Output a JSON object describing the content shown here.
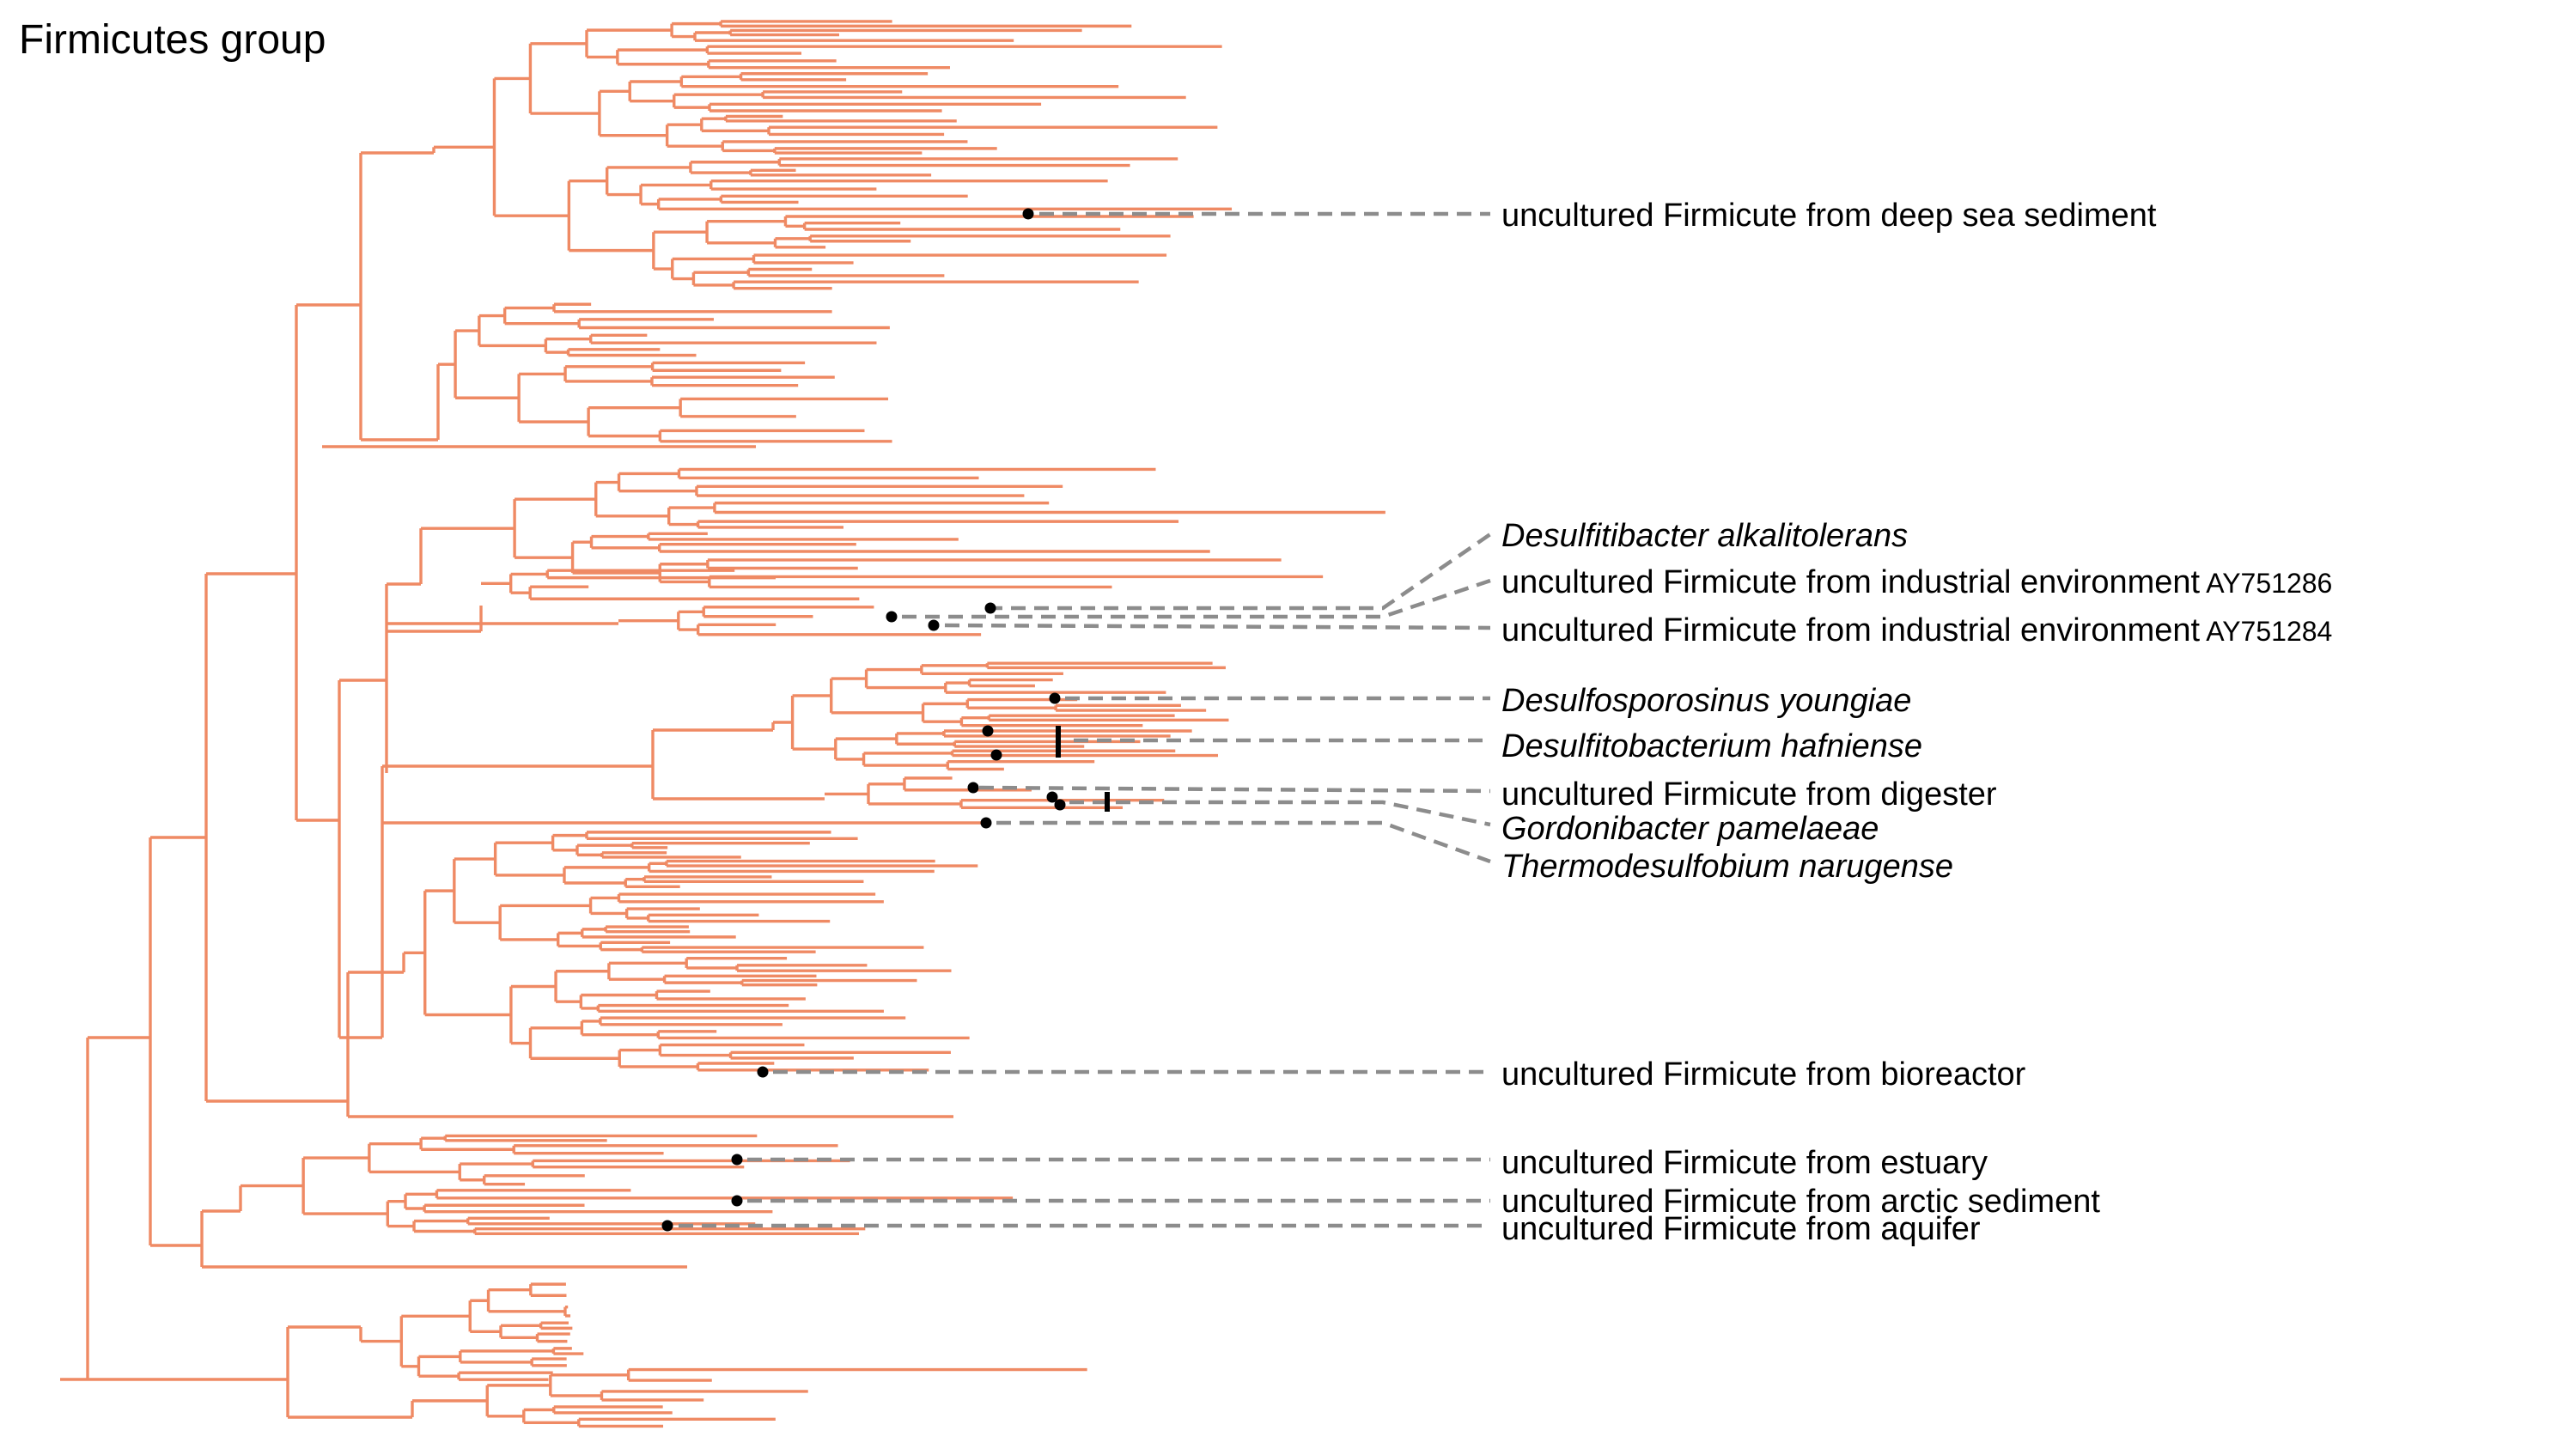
{
  "title": "Firmicutes group",
  "colors": {
    "branch": "#ef8a64",
    "leader": "#8c8c8c",
    "marker": "#000000"
  },
  "labels": [
    {
      "id": "deep_sea",
      "text": "uncultured Firmicute from deep sea sediment",
      "italic": false,
      "accession": ""
    },
    {
      "id": "desulfitibacter",
      "text": "Desulfitibacter alkalitolerans",
      "italic": true,
      "accession": ""
    },
    {
      "id": "industrial_1286",
      "text": "uncultured Firmicute from industrial environment",
      "italic": false,
      "accession": "AY751286"
    },
    {
      "id": "industrial_1284",
      "text": "uncultured Firmicute from industrial environment",
      "italic": false,
      "accession": "AY751284"
    },
    {
      "id": "desulfosporosinus",
      "text": "Desulfosporosinus youngiae",
      "italic": true,
      "accession": ""
    },
    {
      "id": "desulfitobacterium",
      "text": "Desulfitobacterium hafniense",
      "italic": true,
      "accession": ""
    },
    {
      "id": "digester",
      "text": "uncultured Firmicute from digester",
      "italic": false,
      "accession": ""
    },
    {
      "id": "gordonibacter",
      "text": "Gordonibacter pamelaeae",
      "italic": true,
      "accession": ""
    },
    {
      "id": "thermodesulfobium",
      "text": "Thermodesulfobium narugense",
      "italic": true,
      "accession": ""
    },
    {
      "id": "bioreactor",
      "text": "uncultured Firmicute from bioreactor",
      "italic": false,
      "accession": ""
    },
    {
      "id": "estuary",
      "text": "uncultured Firmicute from estuary",
      "italic": false,
      "accession": ""
    },
    {
      "id": "arctic",
      "text": "uncultured Firmicute from arctic sediment",
      "italic": false,
      "accession": ""
    },
    {
      "id": "aquifer",
      "text": "uncultured Firmicute from aquifer",
      "italic": false,
      "accession": ""
    }
  ]
}
